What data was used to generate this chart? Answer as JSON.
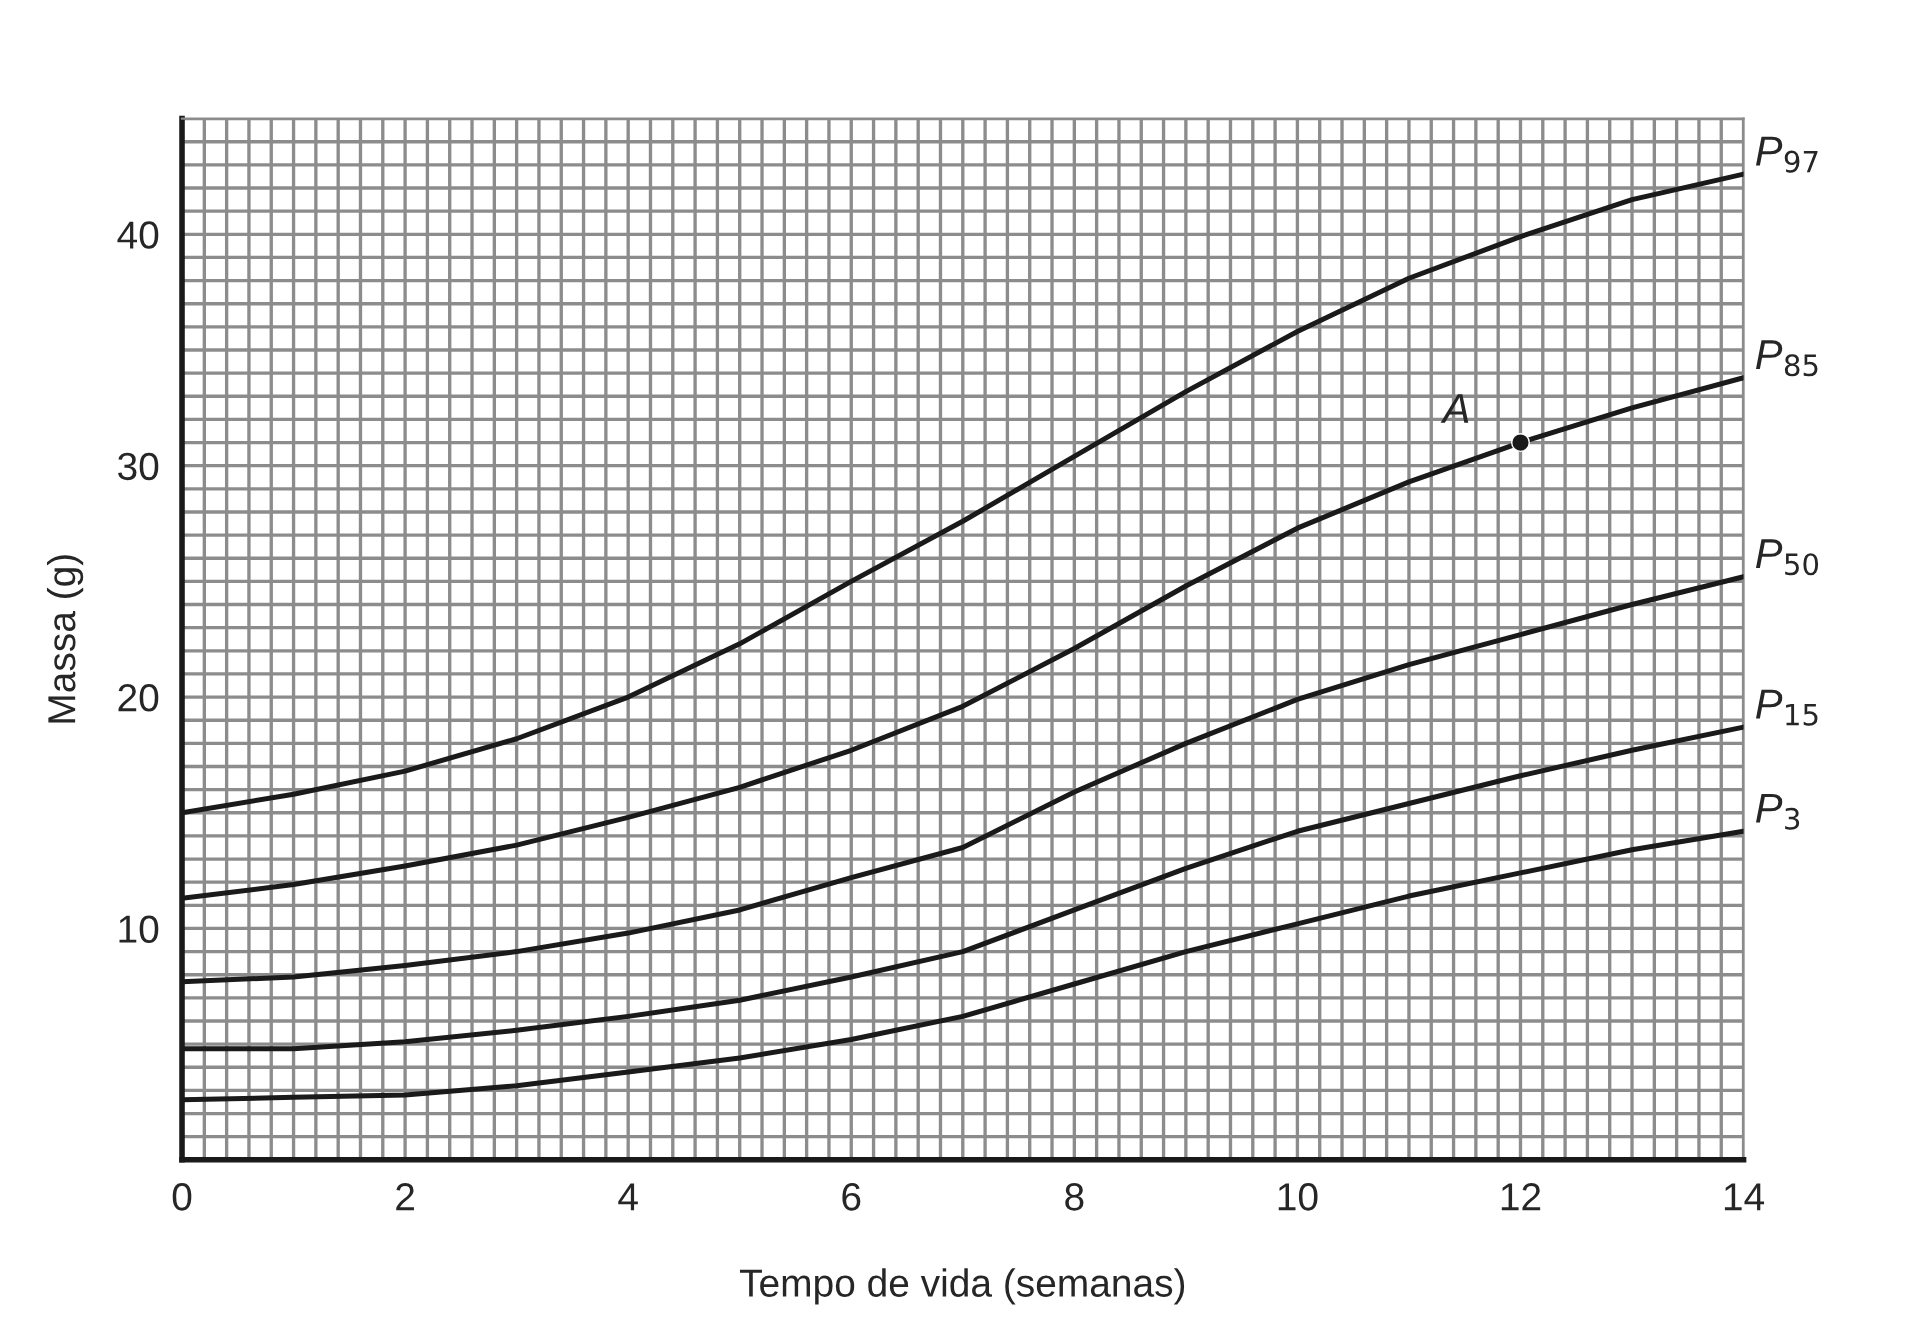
{
  "chart_data": {
    "type": "line",
    "xlabel": "Tempo de vida (semanas)",
    "ylabel": "Massa (g)",
    "x": [
      0,
      1,
      2,
      3,
      4,
      5,
      6,
      7,
      8,
      9,
      10,
      11,
      12,
      13,
      14
    ],
    "series": [
      {
        "name": "P$_{97}$",
        "color": "#1a1a1a",
        "values": [
          15,
          15.8,
          16.8,
          18.2,
          20,
          22.3,
          25,
          27.6,
          30.4,
          33.2,
          35.8,
          38.1,
          39.9,
          41.5,
          42.6
        ]
      },
      {
        "name": "P$_{85}$",
        "color": "#1a1a1a",
        "values": [
          11.3,
          11.9,
          12.7,
          13.6,
          14.8,
          16.1,
          17.7,
          19.6,
          22.1,
          24.8,
          27.3,
          29.3,
          31,
          32.5,
          33.8
        ]
      },
      {
        "name": "P$_{50}$",
        "color": "#1a1a1a",
        "values": [
          7.7,
          7.9,
          8.4,
          9.0,
          9.8,
          10.8,
          12.2,
          13.5,
          15.9,
          18,
          19.9,
          21.4,
          22.7,
          24,
          25.2
        ]
      },
      {
        "name": "P$_{15}$",
        "color": "#1a1a1a",
        "values": [
          4.8,
          4.8,
          5.1,
          5.6,
          6.2,
          6.9,
          7.9,
          9,
          10.8,
          12.6,
          14.2,
          15.4,
          16.6,
          17.7,
          18.7
        ]
      },
      {
        "name": "P$_{3}$",
        "color": "#1a1a1a",
        "values": [
          2.6,
          2.7,
          2.8,
          3.2,
          3.8,
          4.4,
          5.2,
          6.2,
          7.6,
          9,
          10.2,
          11.4,
          12.4,
          13.4,
          14.2
        ]
      },
      {
        "type": "scatter",
        "x": [
          12
        ],
        "color": "#1a1a1a",
        "marker": "circle",
        "values": [
          31
        ]
      }
    ],
    "annotations": [
      {
        "text": "A",
        "x": 12,
        "y": 31
      }
    ],
    "xlim": [
      0,
      14
    ],
    "ylim": [
      0,
      45
    ],
    "xticks": [
      0,
      2,
      4,
      6,
      8,
      10,
      12,
      14
    ],
    "yticks": [
      10,
      20,
      30,
      40
    ],
    "grid": true,
    "legend": false,
    "marker": "none",
    "line_style": "solid"
  }
}
